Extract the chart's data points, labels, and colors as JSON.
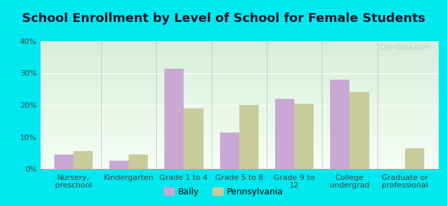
{
  "title": "School Enrollment by Level of School for Female Students",
  "categories": [
    "Nursery,\npreschool",
    "Kindergarten",
    "Grade 1 to 4",
    "Grade 5 to 8",
    "Grade 9 to\n12",
    "College\nundergrad",
    "Graduate or\nprofessional"
  ],
  "bally": [
    4.5,
    2.5,
    31.5,
    11.5,
    22.0,
    28.0,
    0.0
  ],
  "pennsylvania": [
    5.5,
    4.5,
    19.0,
    20.0,
    20.5,
    24.0,
    6.5
  ],
  "bally_color": "#c9a8d4",
  "pennsylvania_color": "#c8cc9a",
  "background_outer": "#00e8f0",
  "background_inner_top": "#d8eeda",
  "background_inner_bottom": "#f5fff5",
  "ylim": [
    0,
    40
  ],
  "yticks": [
    0,
    10,
    20,
    30,
    40
  ],
  "ytick_labels": [
    "0%",
    "10%",
    "20%",
    "30%",
    "40%"
  ],
  "bar_width": 0.35,
  "legend_labels": [
    "Bally",
    "Pennsylvania"
  ],
  "title_fontsize": 13,
  "tick_fontsize": 8,
  "legend_fontsize": 9,
  "watermark": "City-Data.com"
}
